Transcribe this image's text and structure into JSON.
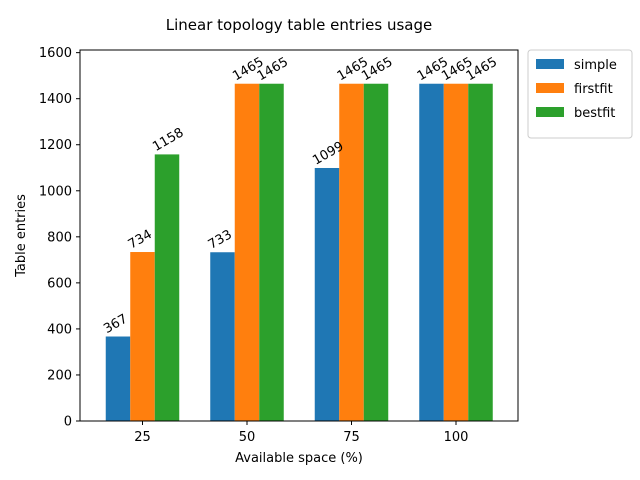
{
  "chart_data": {
    "type": "bar",
    "title": "Linear topology table entries usage",
    "xlabel": "Available space (%)",
    "ylabel": "Table entries",
    "categories": [
      "25",
      "50",
      "75",
      "100"
    ],
    "series": [
      {
        "name": "simple",
        "color": "#1f77b4",
        "values": [
          367,
          733,
          1099,
          1465
        ]
      },
      {
        "name": "firstfit",
        "color": "#ff7f0e",
        "values": [
          734,
          1465,
          1465,
          1465
        ]
      },
      {
        "name": "bestfit",
        "color": "#2ca02c",
        "values": [
          1158,
          1465,
          1465,
          1465
        ]
      }
    ],
    "ylim": [
      0,
      1611.5
    ],
    "yticks": [
      0,
      200,
      400,
      600,
      800,
      1000,
      1200,
      1400,
      1600
    ],
    "grid": false,
    "legend_position": "outside-top-right"
  }
}
